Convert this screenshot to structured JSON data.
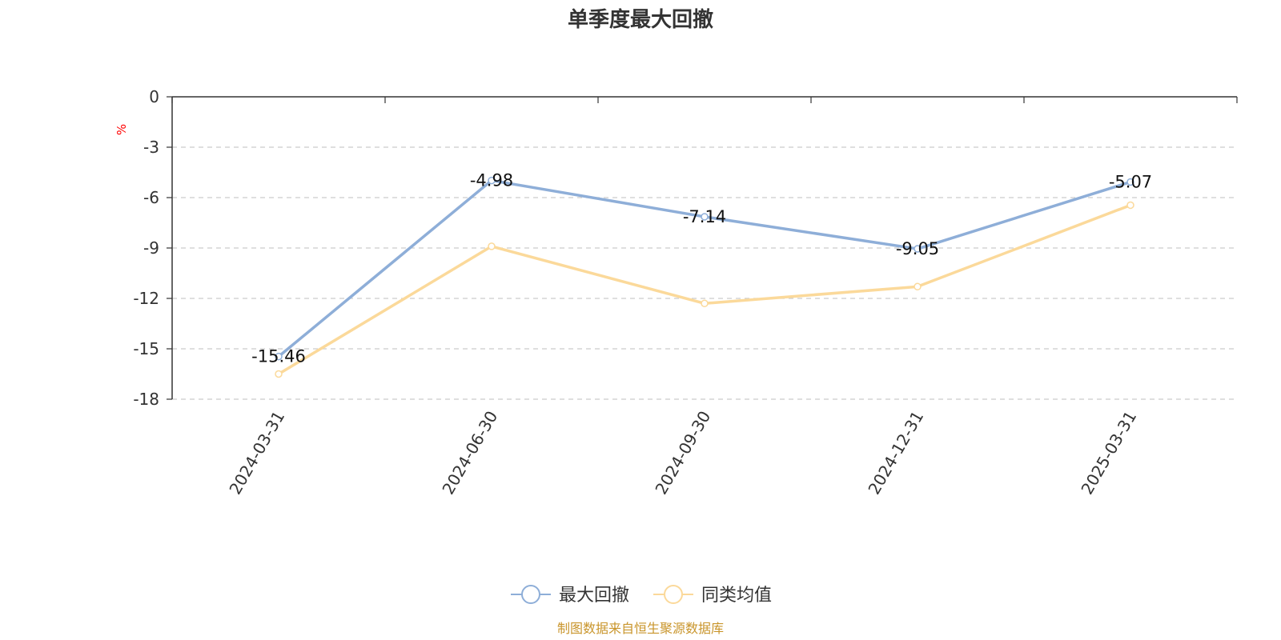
{
  "chart_data": {
    "type": "line",
    "title": "单季度最大回撤",
    "ylabel": "%",
    "xlabel": "",
    "categories": [
      "2024-03-31",
      "2024-06-30",
      "2024-09-30",
      "2024-12-31",
      "2025-03-31"
    ],
    "ylim": [
      -18,
      0
    ],
    "yticks": [
      0,
      -3,
      -6,
      -9,
      -12,
      -15,
      -18
    ],
    "grid": true,
    "legend_position": "bottom-center",
    "series": [
      {
        "name": "最大回撤",
        "color": "#8eaed8",
        "values": [
          -15.46,
          -4.98,
          -7.14,
          -9.05,
          -5.07
        ],
        "show_labels": true
      },
      {
        "name": "同类均值",
        "color": "#fbd99a",
        "values": [
          -16.5,
          -8.9,
          -12.3,
          -11.3,
          -6.45
        ],
        "show_labels": false
      }
    ],
    "source_note": "制图数据来自恒生聚源数据库",
    "source_color": "#c9952b",
    "ylabel_color": "#ff0000"
  }
}
